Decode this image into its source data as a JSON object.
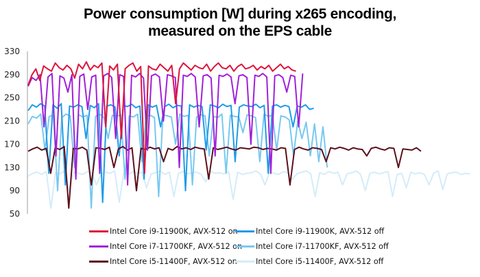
{
  "chart_data": {
    "type": "line",
    "title": "Power consumption [W] during x265 encoding, measured on the EPS cable",
    "title_lines": [
      "Power consumption [W] during x265 encoding,",
      "measured on the EPS cable"
    ],
    "xlabel": "",
    "ylabel": "",
    "x_unit": "relative time (0-100)",
    "xlim": [
      0,
      100
    ],
    "ylim": [
      50,
      330
    ],
    "yticks": [
      50,
      90,
      130,
      170,
      210,
      250,
      290,
      330
    ],
    "ytick_labels": [
      "50",
      "90",
      "130",
      "170",
      "210",
      "250",
      "290",
      "330"
    ],
    "grid": false,
    "legend_position": "bottom",
    "series": [
      {
        "name": "Intel Core i9-11900K, AVX-512 on",
        "color": "#dc143c",
        "x_end": 60,
        "values": [
          272,
          290,
          300,
          280,
          305,
          300,
          296,
          310,
          302,
          298,
          306,
          300,
          284,
          308,
          300,
          312,
          298,
          306,
          302,
          310,
          200,
          305,
          298,
          308,
          180,
          300,
          306,
          310,
          296,
          304,
          120,
          305,
          300,
          298,
          308,
          302,
          296,
          306,
          240,
          300,
          310,
          304,
          298,
          306,
          302,
          300,
          308,
          296,
          304,
          310,
          302,
          300,
          306,
          296,
          304,
          308,
          300,
          302,
          306,
          298,
          304,
          300,
          306,
          296,
          302,
          308,
          300,
          304,
          298,
          296
        ]
      },
      {
        "name": "Intel Core i7-11700KF, AVX-512 on",
        "color": "#a020d8",
        "x_end": 61.5,
        "values": [
          270,
          285,
          280,
          290,
          200,
          286,
          292,
          150,
          288,
          284,
          260,
          290,
          110,
          287,
          291,
          230,
          286,
          289,
          120,
          288,
          292,
          285,
          180,
          290,
          287,
          100,
          289,
          286,
          292,
          284,
          160,
          288,
          291,
          286,
          210,
          290,
          288,
          285,
          130,
          289,
          287,
          292,
          286,
          200,
          288,
          290,
          284,
          150,
          289,
          287,
          291,
          286,
          240,
          288,
          290,
          285,
          170,
          289,
          287,
          292,
          286,
          120,
          288,
          290,
          285,
          260,
          289,
          287,
          200,
          292
        ]
      },
      {
        "name": "Intel Core i9-11900K, AVX-512 off",
        "color": "#1e9be8",
        "x_end": 64,
        "values": [
          228,
          238,
          234,
          240,
          236,
          120,
          238,
          232,
          240,
          100,
          236,
          234,
          238,
          235,
          180,
          237,
          233,
          240,
          70,
          236,
          238,
          234,
          150,
          237,
          235,
          239,
          233,
          236,
          110,
          238,
          234,
          237,
          200,
          235,
          239,
          233,
          237,
          236,
          90,
          238,
          234,
          237,
          235,
          160,
          238,
          236,
          233,
          239,
          235,
          237,
          140,
          234,
          238,
          236,
          235,
          239,
          233,
          237,
          120,
          236,
          238,
          234,
          237,
          235,
          200,
          236,
          234,
          238,
          230,
          232
        ]
      },
      {
        "name": "Intel Core i7-11700KF, AVX-512 off",
        "color": "#78c8f0",
        "x_end": 67,
        "values": [
          205,
          218,
          215,
          222,
          160,
          218,
          220,
          90,
          216,
          222,
          219,
          130,
          221,
          217,
          220,
          60,
          218,
          222,
          216,
          180,
          220,
          218,
          221,
          110,
          219,
          217,
          222,
          140,
          218,
          220,
          216,
          80,
          221,
          219,
          217,
          170,
          222,
          218,
          220,
          100,
          217,
          221,
          219,
          150,
          218,
          216,
          222,
          120,
          220,
          218,
          217,
          190,
          221,
          219,
          216,
          140,
          222,
          218,
          220,
          160,
          219,
          217,
          212,
          150,
          210,
          180,
          208,
          150,
          205,
          140,
          200,
          130
        ]
      },
      {
        "name": "Intel Core i5-11400F, AVX-512 on",
        "color": "#5c0f1a",
        "x_end": 88,
        "values": [
          158,
          162,
          165,
          160,
          163,
          120,
          164,
          161,
          166,
          60,
          163,
          162,
          165,
          160,
          100,
          164,
          163,
          161,
          165,
          130,
          162,
          166,
          160,
          164,
          90,
          163,
          161,
          165,
          162,
          164,
          140,
          163,
          160,
          166,
          162,
          164,
          161,
          165,
          163,
          162,
          110,
          164,
          161,
          163,
          165,
          162,
          160,
          164,
          163,
          162,
          165,
          164,
          161,
          163,
          162,
          160,
          164,
          163,
          100,
          161,
          165,
          162,
          160,
          164,
          163,
          161,
          140,
          164,
          162,
          165,
          163,
          160,
          164,
          162,
          161,
          150,
          163,
          165,
          162,
          160,
          164,
          163,
          130,
          162,
          161,
          160,
          164,
          158
        ]
      },
      {
        "name": "Intel Core i5-11400F, AVX-512 off",
        "color": "#d4ecfa",
        "x_end": 99,
        "values": [
          115,
          120,
          122,
          118,
          123,
          60,
          121,
          119,
          124,
          90,
          122,
          120,
          118,
          123,
          121,
          100,
          119,
          122,
          120,
          124,
          70,
          121,
          118,
          123,
          120,
          122,
          95,
          119,
          121,
          124,
          118,
          122,
          80,
          120,
          123,
          119,
          121,
          122,
          118,
          105,
          124,
          120,
          121,
          119,
          123,
          75,
          122,
          118,
          120,
          121,
          124,
          119,
          100,
          122,
          120,
          118,
          123,
          121,
          110,
          119,
          122,
          124,
          120,
          80,
          121,
          118,
          123,
          120,
          122,
          100,
          119,
          121,
          124,
          118,
          90,
          120,
          122,
          119,
          121,
          123,
          80,
          118,
          120,
          95,
          122,
          119,
          121,
          118,
          100,
          120,
          124,
          92,
          119,
          121,
          122,
          118,
          120,
          119
        ]
      }
    ]
  }
}
